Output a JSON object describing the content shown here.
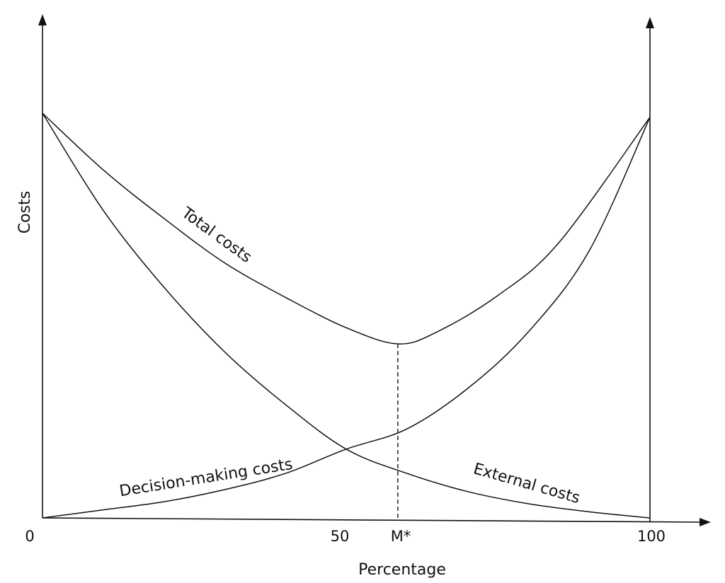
{
  "chart_data": {
    "type": "line",
    "title": "",
    "xlabel": "Percentage",
    "ylabel": "Costs",
    "xlim": [
      0,
      100
    ],
    "ylim": [
      0,
      1
    ],
    "grid": false,
    "legend": "none (curves labeled directly)",
    "x_ticks": [
      {
        "label": "0",
        "value": 0
      },
      {
        "label": "50",
        "value": 50
      },
      {
        "label": "M*",
        "value": 58.5
      },
      {
        "label": "100",
        "value": 100
      }
    ],
    "marker": {
      "label": "M*",
      "x": 58.5,
      "y": 0.43,
      "style": "dashed vertical line"
    },
    "series": [
      {
        "name": "Total costs",
        "x": [
          0,
          10,
          20,
          30,
          40,
          50,
          58.5,
          65,
          75,
          85,
          100
        ],
        "y": [
          1.0,
          0.86,
          0.74,
          0.63,
          0.545,
          0.47,
          0.43,
          0.46,
          0.55,
          0.68,
          0.99
        ]
      },
      {
        "name": "Decision-making costs",
        "x": [
          0,
          10,
          20,
          30,
          40,
          50,
          60,
          70,
          80,
          90,
          100
        ],
        "y": [
          0.0,
          0.02,
          0.04,
          0.07,
          0.11,
          0.17,
          0.22,
          0.32,
          0.46,
          0.66,
          0.99
        ]
      },
      {
        "name": "External costs",
        "x": [
          0,
          10,
          20,
          30,
          40,
          50,
          60,
          70,
          80,
          90,
          100
        ],
        "y": [
          1.0,
          0.76,
          0.57,
          0.41,
          0.28,
          0.17,
          0.11,
          0.065,
          0.035,
          0.015,
          0.0
        ]
      }
    ]
  }
}
